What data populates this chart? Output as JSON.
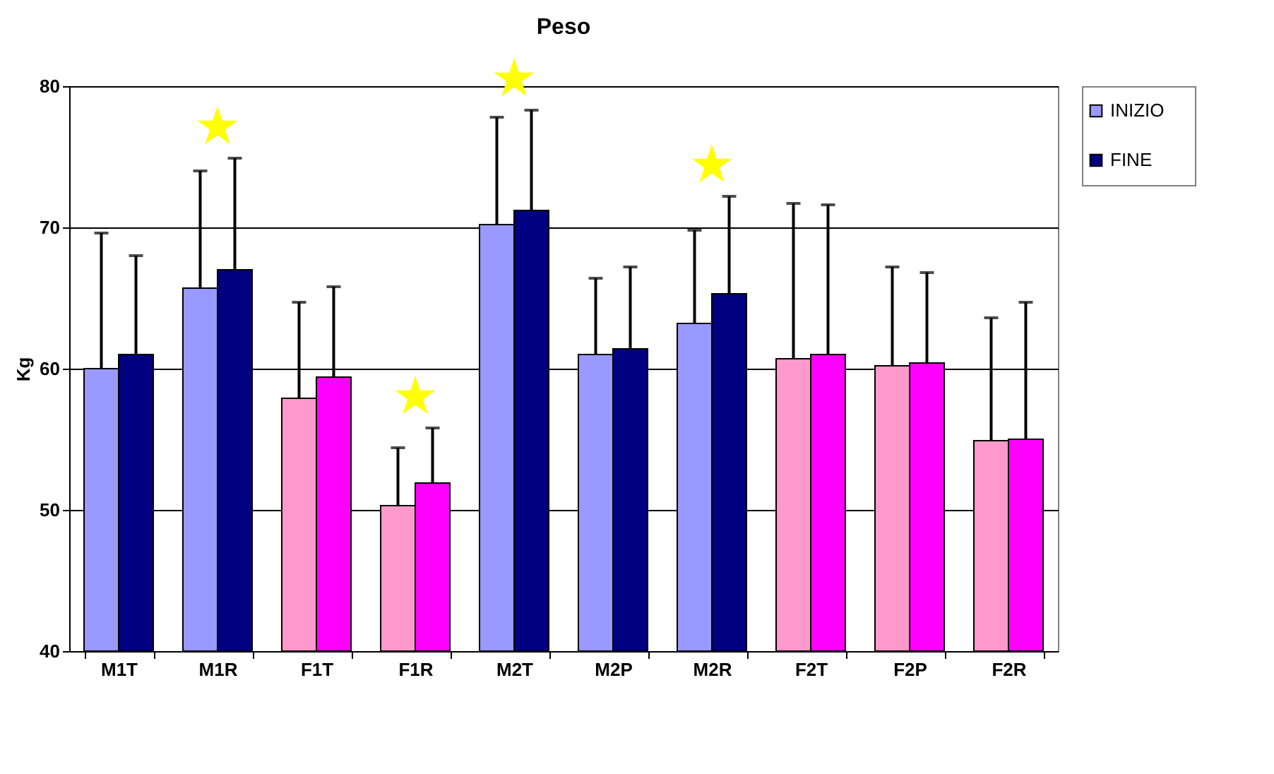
{
  "chart_data": {
    "type": "bar",
    "title": "Peso",
    "ylabel": "Kg",
    "categories": [
      "M1T",
      "M1R",
      "F1T",
      "F1R",
      "M2T",
      "M2P",
      "M2R",
      "F2T",
      "F2P",
      "F2R"
    ],
    "series": [
      {
        "name": "INIZIO",
        "color": "#9999ff",
        "colors": [
          "#9999ff",
          "#9999ff",
          "#ff99cc",
          "#ff99cc",
          "#9999ff",
          "#9999ff",
          "#9999ff",
          "#ff99cc",
          "#ff99cc",
          "#ff99cc"
        ],
        "values": [
          60.0,
          65.7,
          57.9,
          50.3,
          70.2,
          61.0,
          63.2,
          60.7,
          60.2,
          54.9
        ],
        "errors": [
          [
            60.0,
            69.6
          ],
          [
            65.7,
            74.0
          ],
          [
            57.9,
            64.7
          ],
          [
            50.3,
            54.4
          ],
          [
            70.2,
            77.8
          ],
          [
            61.0,
            66.4
          ],
          [
            63.2,
            69.8
          ],
          [
            60.7,
            71.7
          ],
          [
            60.2,
            67.2
          ],
          [
            54.9,
            63.6
          ]
        ]
      },
      {
        "name": "FINE",
        "color": "#000080",
        "colors": [
          "#000080",
          "#000080",
          "#ff00ff",
          "#ff00ff",
          "#000080",
          "#000080",
          "#000080",
          "#ff00ff",
          "#ff00ff",
          "#ff00ff"
        ],
        "values": [
          61.0,
          67.0,
          59.4,
          51.9,
          71.2,
          61.4,
          65.3,
          61.0,
          60.4,
          55.0
        ],
        "errors": [
          [
            61.0,
            68.0
          ],
          [
            67.0,
            74.9
          ],
          [
            59.4,
            65.8
          ],
          [
            51.9,
            55.8
          ],
          [
            71.2,
            78.3
          ],
          [
            61.4,
            67.2
          ],
          [
            65.3,
            72.2
          ],
          [
            61.0,
            71.6
          ],
          [
            60.4,
            66.8
          ],
          [
            55.0,
            64.7
          ]
        ]
      }
    ],
    "ylim": [
      40,
      80
    ],
    "yticks": [
      40,
      50,
      60,
      70,
      80
    ],
    "grid": "y",
    "legend": "right"
  }
}
